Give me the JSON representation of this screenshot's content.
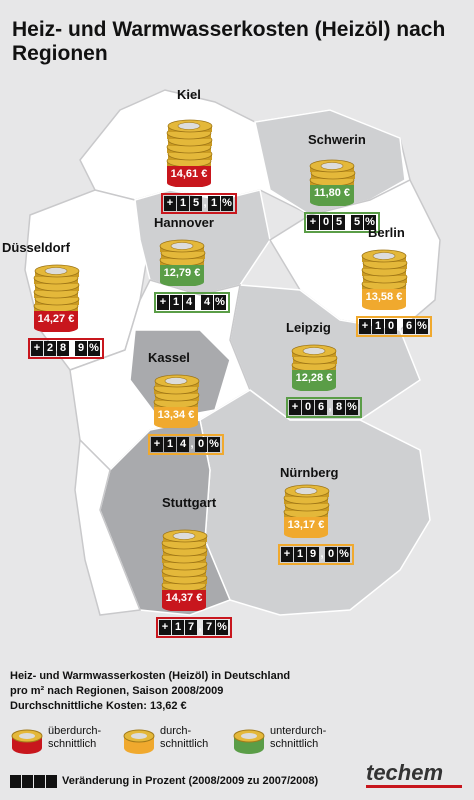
{
  "title": "Heiz- und Warmwasserkosten (Heizöl) nach Regionen",
  "chart_data": {
    "type": "map",
    "title": "Heiz- und Warmwasserkosten (Heizöl) nach Regionen",
    "cities": [
      {
        "name": "Kiel",
        "cost": "14,61 €",
        "change": [
          "+",
          "1",
          "5",
          "1"
        ],
        "category": "above"
      },
      {
        "name": "Schwerin",
        "cost": "11,80 €",
        "change": [
          "+",
          "0",
          "5",
          "5"
        ],
        "category": "below"
      },
      {
        "name": "Hannover",
        "cost": "12,79 €",
        "change": [
          "+",
          "1",
          "4",
          "4"
        ],
        "category": "below"
      },
      {
        "name": "Berlin",
        "cost": "13,58 €",
        "change": [
          "+",
          "1",
          "0",
          "6"
        ],
        "category": "average"
      },
      {
        "name": "Düsseldorf",
        "cost": "14,27 €",
        "change": [
          "+",
          "2",
          "8",
          "9"
        ],
        "category": "above"
      },
      {
        "name": "Leipzig",
        "cost": "12,28 €",
        "change": [
          "+",
          "0",
          "6",
          "8"
        ],
        "category": "below"
      },
      {
        "name": "Kassel",
        "cost": "13,34 €",
        "change": [
          "+",
          "1",
          "4",
          "0"
        ],
        "category": "average"
      },
      {
        "name": "Nürnberg",
        "cost": "13,17 €",
        "change": [
          "+",
          "1",
          "9",
          "0"
        ],
        "category": "average"
      },
      {
        "name": "Stuttgart",
        "cost": "14,37 €",
        "change": [
          "+",
          "1",
          "7",
          "7"
        ],
        "category": "above"
      }
    ]
  },
  "legend": {
    "line1": "Heiz- und Warmwasserkosten (Heizöl) in Deutschland",
    "line2": "pro m² nach Regionen, Saison 2008/2009",
    "line3": "Durchschnittliche Kosten: 13,62 €",
    "above_l1": "überdurch-",
    "above_l2": "schnittlich",
    "average_l1": "durch-",
    "average_l2": "schnittlich",
    "below_l1": "unterdurch-",
    "below_l2": "schnittlich",
    "change_label": "Veränderung in Prozent (2008/2009 zu 2007/2008)"
  },
  "brand": "techem",
  "colors": {
    "above": "#c8161d",
    "average": "#f0a92e",
    "below": "#5a9d47",
    "map_light": "#ffffff",
    "map_mid": "#cfd0d2",
    "map_dark": "#a9aaad",
    "coin": "#e4b83a"
  }
}
